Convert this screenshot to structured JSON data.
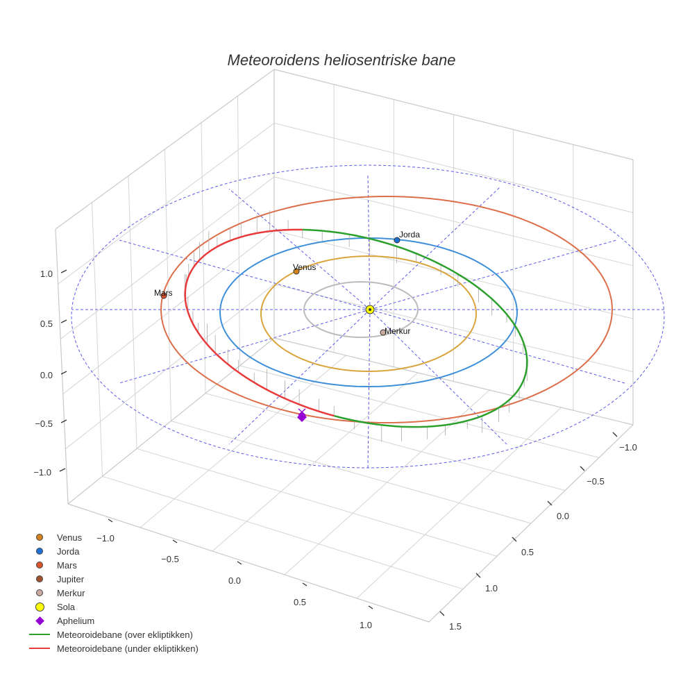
{
  "chart_data": {
    "type": "line",
    "title": "Meteoroidens heliosentriske bane",
    "axes": {
      "x": {
        "ticks": [
          "−1.0",
          "−0.5",
          "0.0",
          "0.5",
          "1.0",
          "1.5"
        ]
      },
      "y": {
        "ticks": [
          "−1.0",
          "−0.5",
          "0.0",
          "0.5",
          "1.0"
        ]
      },
      "z": {
        "ticks": [
          "−1.0",
          "−0.5",
          "0.0",
          "0.5",
          "1.0"
        ]
      }
    },
    "grid": true,
    "legend_position": "bottom-left",
    "bodies": [
      {
        "name": "Venus",
        "label": "Venus",
        "color": "#d4821f",
        "orbit_color": "#d9a43c"
      },
      {
        "name": "Jorda",
        "label": "Jorda",
        "color": "#1f6fd4",
        "orbit_color": "#3d8fd9"
      },
      {
        "name": "Mars",
        "label": "Mars",
        "color": "#d9532b",
        "orbit_color": "#dd6e4a"
      },
      {
        "name": "Jupiter",
        "label": "",
        "color": "#a0522d",
        "orbit_color": "#5a5ae6"
      },
      {
        "name": "Merkur",
        "label": "Merkur",
        "color": "#c8aaa0",
        "orbit_color": "#bbbbbb"
      }
    ],
    "sun": {
      "name": "Sola",
      "color": "#ffff00"
    },
    "aphelium": {
      "name": "Aphelium",
      "color": "#9400d3"
    },
    "meteoroid_series": [
      {
        "name": "Meteoroidebane (over ekliptikken)",
        "color": "#2ca02c"
      },
      {
        "name": "Meteoroidebane (under ekliptikken)",
        "color": "#e83a3a"
      }
    ]
  },
  "legend": [
    {
      "kind": "dot",
      "color": "#d4821f",
      "label": "Venus"
    },
    {
      "kind": "dot",
      "color": "#1f6fd4",
      "label": "Jorda"
    },
    {
      "kind": "dot",
      "color": "#d9532b",
      "label": "Mars"
    },
    {
      "kind": "dot",
      "color": "#a0522d",
      "label": "Jupiter"
    },
    {
      "kind": "dot",
      "color": "#c8aaa0",
      "label": "Merkur"
    },
    {
      "kind": "big",
      "color": "#ffff00",
      "label": "Sola"
    },
    {
      "kind": "diamond",
      "color": "#9400d3",
      "label": "Aphelium"
    },
    {
      "kind": "line",
      "color": "#2ca02c",
      "label": "Meteoroidebane (over ekliptikken)"
    },
    {
      "kind": "line",
      "color": "#e83a3a",
      "label": "Meteoroidebane (under ekliptikken)"
    }
  ]
}
